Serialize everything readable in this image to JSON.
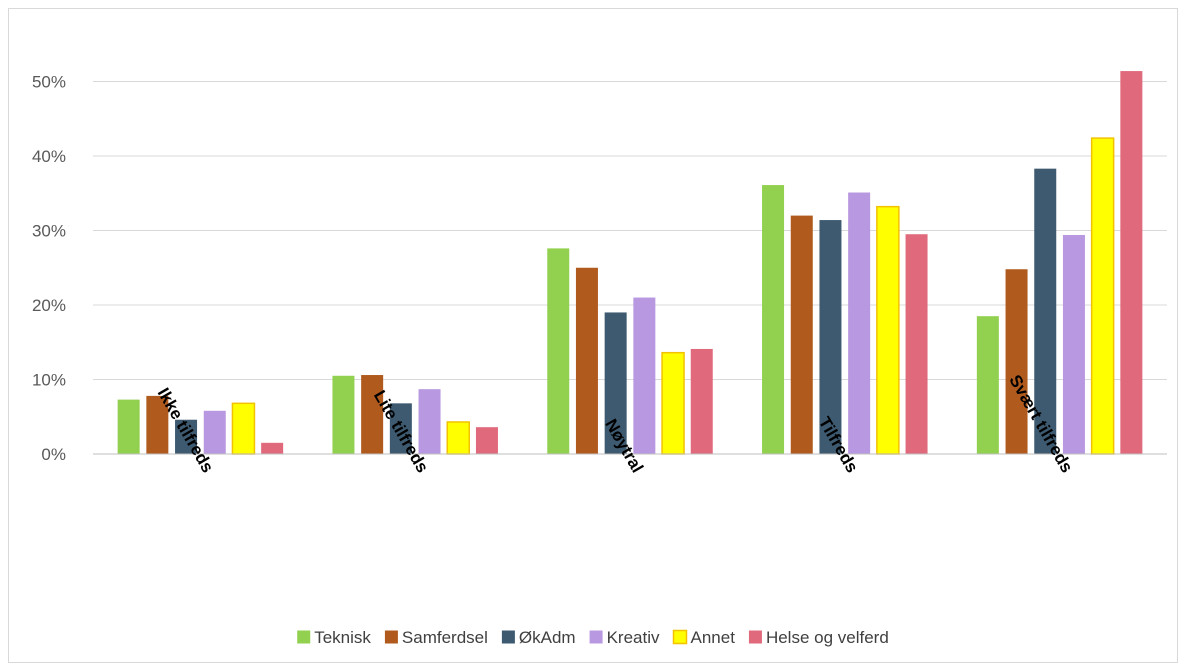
{
  "chart_data": {
    "type": "bar",
    "title": "",
    "xlabel": "",
    "ylabel": "",
    "categories": [
      "Ikke tilfreds",
      "Lite tilfreds",
      "Nøytral",
      "Tilfreds",
      "Svært tilfreds"
    ],
    "ylim": [
      0,
      0.55
    ],
    "yticks": [
      0,
      0.1,
      0.2,
      0.3,
      0.4,
      0.5
    ],
    "ytick_labels": [
      "0%",
      "10%",
      "20%",
      "30%",
      "40%",
      "50%"
    ],
    "grid": true,
    "legend_position": "bottom",
    "series": [
      {
        "name": "Teknisk",
        "color": "#92d050",
        "values": [
          0.073,
          0.105,
          0.276,
          0.361,
          0.185
        ]
      },
      {
        "name": "Samferdsel",
        "color": "#b05a1e",
        "values": [
          0.078,
          0.106,
          0.25,
          0.32,
          0.248
        ]
      },
      {
        "name": "ØkAdm",
        "color": "#3d5a70",
        "values": [
          0.046,
          0.068,
          0.19,
          0.314,
          0.383
        ]
      },
      {
        "name": "Kreativ",
        "color": "#b898e0",
        "values": [
          0.058,
          0.087,
          0.21,
          0.351,
          0.294
        ]
      },
      {
        "name": "Annet",
        "color": "#ffff00",
        "edge": "#f2c200",
        "values": [
          0.068,
          0.043,
          0.136,
          0.332,
          0.424
        ]
      },
      {
        "name": "Helse og velferd",
        "color": "#e0697c",
        "values": [
          0.015,
          0.036,
          0.141,
          0.295,
          0.514
        ]
      }
    ]
  }
}
